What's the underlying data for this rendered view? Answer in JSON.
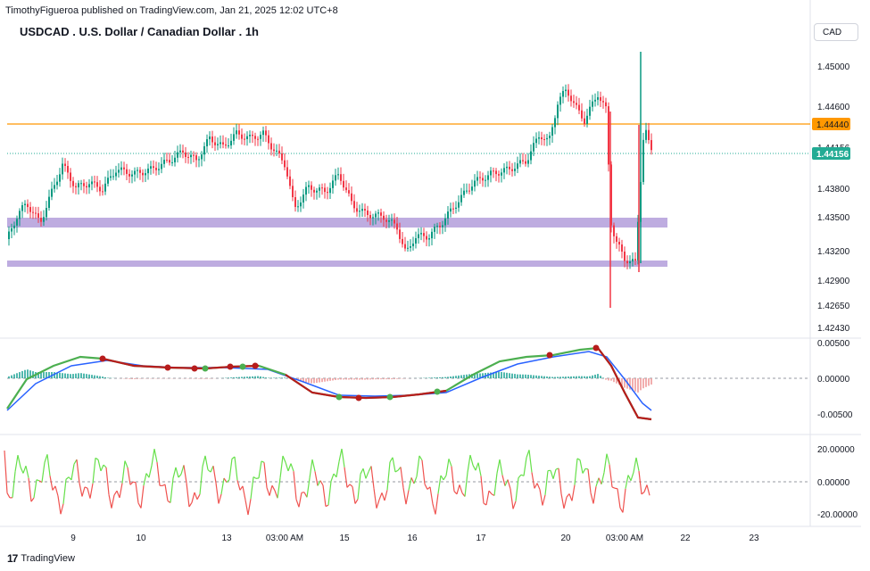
{
  "header": {
    "published_line": "TimothyFigueroa published on TradingView.com, Jan 21, 2025 12:02 UTC+8",
    "symbol_title": "USDCAD . U.S. Dollar / Canadian Dollar . 1h",
    "currency_button": "CAD"
  },
  "price_axis": {
    "labels": [
      "1.45000",
      "1.44600",
      "1.44440",
      "1.44156",
      "1.43800",
      "1.43500",
      "1.43200",
      "1.42900",
      "1.42650",
      "1.42430"
    ],
    "resistance_label": "1.44440",
    "last_price_label": "1.44156"
  },
  "macd_axis": {
    "labels": [
      "0.00500",
      "0.00000",
      "-0.00500"
    ]
  },
  "osc_axis": {
    "labels": [
      "20.00000",
      "0.00000",
      "-20.00000"
    ]
  },
  "time_axis": {
    "labels": [
      "9",
      "10",
      "13",
      "03:00 AM",
      "15",
      "16",
      "17",
      "20",
      "03:00 AM",
      "22",
      "23"
    ]
  },
  "colors": {
    "up": "#089981",
    "down": "#f23645",
    "resistance": "#ff9800",
    "zone": "#b39ddb",
    "last_price": "#22ab94",
    "macd_fast": "#4caf50",
    "macd_fast_down": "#b71c1c",
    "macd_slow": "#2962ff",
    "osc_up": "#66e04a",
    "osc_down": "#ef5350"
  },
  "footer": {
    "logo_glyph": "17",
    "brand": "TradingView"
  }
}
